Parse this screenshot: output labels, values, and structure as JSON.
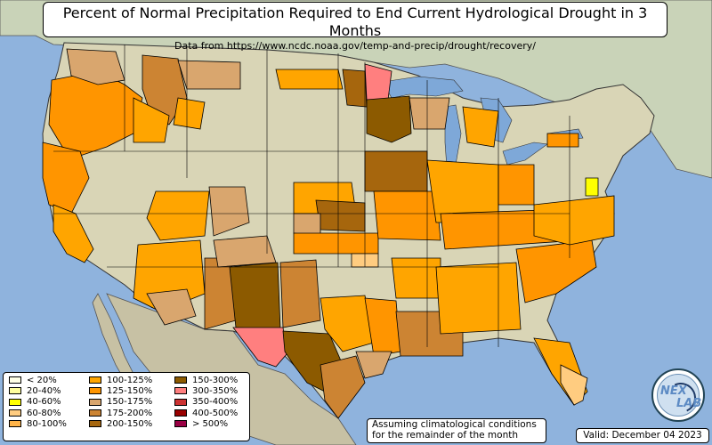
{
  "title": "Percent of Normal Precipitation Required to End Current Hydrological Drought in 3 Months",
  "subtitle": "Data from https://www.ncdc.noaa.gov/temp-and-precip/drought/recovery/",
  "note_line1": "Assuming climatological conditions",
  "note_line2": "for the remainder of the month",
  "valid": "Valid: December 04 2023",
  "logo_text_1": "NEX",
  "logo_text_2": "LAB",
  "colors": {
    "ocean": "#8fb3dd",
    "land": "#d9d5b6",
    "mexico": "#c7c1a4",
    "canada": "#c9d3b8",
    "lakes": "#7ea8d8",
    "border": "#000000"
  },
  "legend": [
    {
      "label": "< 20%",
      "color": "#ffffe6"
    },
    {
      "label": "20-40%",
      "color": "#ffff9e"
    },
    {
      "label": "40-60%",
      "color": "#ffff00"
    },
    {
      "label": "60-80%",
      "color": "#ffcc80"
    },
    {
      "label": "80-100%",
      "color": "#ffb347"
    },
    {
      "label": "100-125%",
      "color": "#ffa500"
    },
    {
      "label": "125-150%",
      "color": "#ff9500"
    },
    {
      "label": "150-175%",
      "color": "#d9a66e"
    },
    {
      "label": "175-200%",
      "color": "#cc8433"
    },
    {
      "label": "200-150%",
      "color": "#a6660d"
    },
    {
      "label": "150-300%",
      "color": "#8c5a00"
    },
    {
      "label": "300-350%",
      "color": "#ff7f7f"
    },
    {
      "label": "350-400%",
      "color": "#cc3333"
    },
    {
      "label": "400-500%",
      "color": "#990000"
    },
    {
      "label": "> 500%",
      "color": "#990044"
    }
  ]
}
